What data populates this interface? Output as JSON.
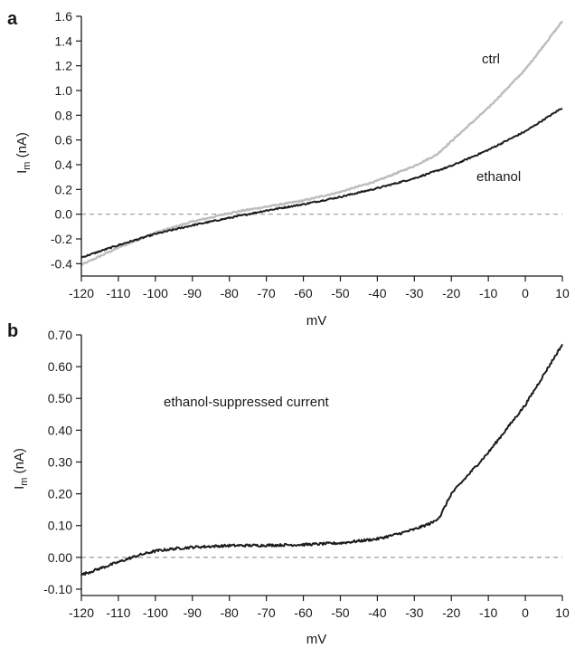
{
  "chart_data": [
    {
      "panel_label": "a",
      "type": "line",
      "xlabel": "mV",
      "ylabel": "I",
      "ylabel_sub": "m",
      "ylabel_unit": " (nA)",
      "xlim": [
        -120,
        10
      ],
      "ylim": [
        -0.5,
        1.6
      ],
      "xticks": [
        -120,
        -110,
        -100,
        -90,
        -80,
        -70,
        -60,
        -50,
        -40,
        -30,
        -20,
        -10,
        0,
        10
      ],
      "yticks": [
        -0.4,
        -0.2,
        0.0,
        0.2,
        0.4,
        0.6,
        0.8,
        1.0,
        1.2,
        1.4,
        1.6
      ],
      "ytick_labels": [
        "-0.4",
        "-0.2",
        "0.0",
        "0.2",
        "0.4",
        "0.6",
        "0.8",
        "1.0",
        "1.2",
        "1.4",
        "1.6"
      ],
      "zero_line": true,
      "series": [
        {
          "name": "ctrl",
          "color": "#bdbdbd",
          "x": [
            -120,
            -110,
            -100,
            -90,
            -84,
            -80,
            -70,
            -60,
            -50,
            -40,
            -30,
            -24,
            -20,
            -10,
            0,
            10
          ],
          "y": [
            -0.41,
            -0.27,
            -0.15,
            -0.06,
            -0.02,
            0.01,
            0.06,
            0.11,
            0.18,
            0.27,
            0.39,
            0.48,
            0.59,
            0.86,
            1.17,
            1.56
          ]
        },
        {
          "name": "ethanol",
          "color": "#1f1a1c",
          "x": [
            -120,
            -110,
            -100,
            -90,
            -80,
            -70,
            -60,
            -50,
            -40,
            -30,
            -20,
            -10,
            0,
            10
          ],
          "y": [
            -0.35,
            -0.25,
            -0.16,
            -0.09,
            -0.03,
            0.03,
            0.08,
            0.14,
            0.21,
            0.29,
            0.39,
            0.52,
            0.67,
            0.86
          ]
        }
      ]
    },
    {
      "panel_label": "b",
      "type": "line",
      "annotation": "ethanol-suppressed current",
      "xlabel": "mV",
      "ylabel": "I",
      "ylabel_sub": "m",
      "ylabel_unit": " (nA)",
      "xlim": [
        -120,
        10
      ],
      "ylim": [
        -0.12,
        0.7
      ],
      "xticks": [
        -120,
        -110,
        -100,
        -90,
        -80,
        -70,
        -60,
        -50,
        -40,
        -30,
        -20,
        -10,
        0,
        10
      ],
      "yticks": [
        -0.1,
        0.0,
        0.1,
        0.2,
        0.3,
        0.4,
        0.5,
        0.6,
        0.7
      ],
      "ytick_labels": [
        "-0.10",
        "0.00",
        "0.10",
        "0.20",
        "0.30",
        "0.40",
        "0.50",
        "0.60",
        "0.70"
      ],
      "zero_line": true,
      "series": [
        {
          "name": "ethanol-suppressed current",
          "color": "#1f1a1c",
          "x": [
            -120,
            -115,
            -110,
            -105,
            -100,
            -95,
            -90,
            -80,
            -70,
            -60,
            -50,
            -40,
            -35,
            -30,
            -25,
            -23,
            -20,
            -10,
            0,
            10
          ],
          "y": [
            -0.055,
            -0.035,
            -0.015,
            0.005,
            0.02,
            0.027,
            0.032,
            0.037,
            0.038,
            0.04,
            0.045,
            0.058,
            0.072,
            0.088,
            0.11,
            0.13,
            0.2,
            0.33,
            0.48,
            0.67
          ]
        }
      ]
    }
  ]
}
